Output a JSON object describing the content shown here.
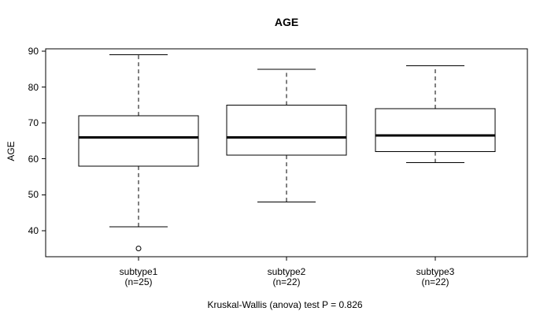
{
  "chart_data": {
    "type": "boxplot",
    "title": "AGE",
    "ylabel": "AGE",
    "yticks": [
      40,
      50,
      60,
      70,
      80,
      90
    ],
    "ylim": [
      32.7,
      90.7
    ],
    "grid": false,
    "caption": "Kruskal-Wallis (anova) test P = 0.826",
    "groups": [
      {
        "label": "subtype1",
        "n_label": "(n=25)",
        "whisker_low": 41,
        "q1": 58,
        "median": 66,
        "q3": 72,
        "whisker_high": 89,
        "outliers": [
          35
        ]
      },
      {
        "label": "subtype2",
        "n_label": "(n=22)",
        "whisker_low": 48,
        "q1": 61,
        "median": 66,
        "q3": 75,
        "whisker_high": 85,
        "outliers": []
      },
      {
        "label": "subtype3",
        "n_label": "(n=22)",
        "whisker_low": 59,
        "q1": 62,
        "median": 66.5,
        "q3": 74,
        "whisker_high": 86,
        "outliers": []
      }
    ],
    "colors": {
      "line": "#000000",
      "box_fill": "#ffffff",
      "background": "#ffffff",
      "text": "#000000"
    }
  }
}
